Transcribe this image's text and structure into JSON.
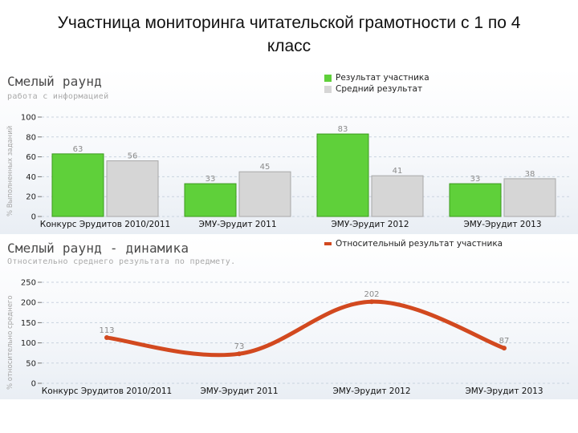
{
  "page": {
    "title_line1": "Участница мониторинга читательской грамотности с 1 по 4",
    "title_line2": "класс"
  },
  "chart_data": [
    {
      "type": "bar",
      "title": "Смелый раунд",
      "subtitle": "работа с информацией",
      "ylabel": "% Выполненных заданий",
      "categories": [
        "Конкурс Эрудитов 2010/2011",
        "ЭМУ-Эрудит 2011",
        "ЭМУ-Эрудит 2012",
        "ЭМУ-Эрудит 2013"
      ],
      "series": [
        {
          "name": "Результат участника",
          "values": [
            63,
            33,
            83,
            33
          ],
          "color": "#5fd03a"
        },
        {
          "name": "Средний результат",
          "values": [
            56,
            45,
            41,
            38
          ],
          "color": "#d6d6d6"
        }
      ],
      "ylim": [
        0,
        100
      ],
      "yticks": [
        0,
        20,
        40,
        60,
        80,
        100
      ],
      "grid": true,
      "legend": "top-right"
    },
    {
      "type": "line",
      "title": "Смелый раунд - динамика",
      "subtitle": "Относительно среднего результата по предмету.",
      "ylabel": "% относительно среднего",
      "categories": [
        "Конкурс Эрудитов 2010/2011",
        "ЭМУ-Эрудит 2011",
        "ЭМУ-Эрудит 2012",
        "ЭМУ-Эрудит 2013"
      ],
      "series": [
        {
          "name": "Относительный результат участника",
          "values": [
            113,
            73,
            202,
            87
          ],
          "color": "#d2491f"
        }
      ],
      "ylim": [
        0,
        250
      ],
      "yticks": [
        0,
        50,
        100,
        150,
        200,
        250
      ],
      "grid": true,
      "legend": "top-right"
    }
  ]
}
